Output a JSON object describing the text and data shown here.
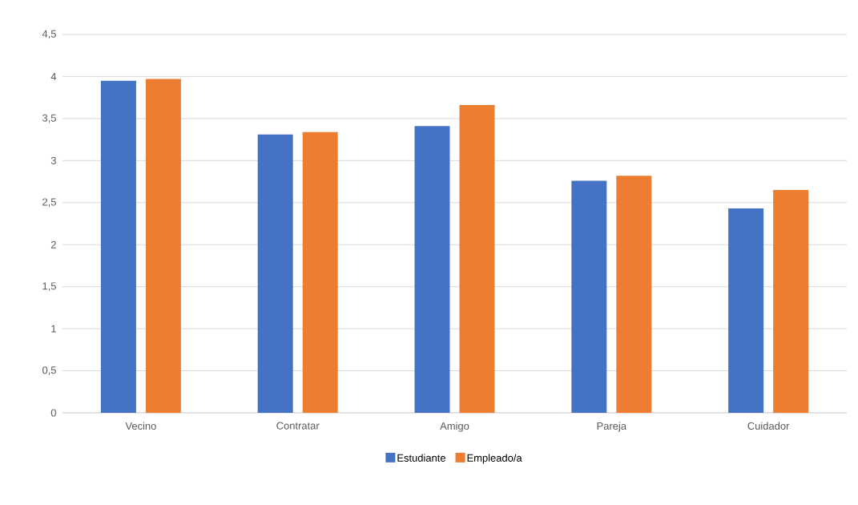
{
  "chart_data": {
    "type": "bar",
    "categories": [
      "Vecino",
      "Contratar",
      "Amigo",
      "Pareja",
      "Cuidador"
    ],
    "series": [
      {
        "name": "Estudiante",
        "color": "#4472c4",
        "values": [
          3.95,
          3.31,
          3.41,
          2.76,
          2.43
        ]
      },
      {
        "name": "Empleado/a",
        "color": "#ed7d31",
        "values": [
          3.97,
          3.34,
          3.66,
          2.82,
          2.65
        ]
      }
    ],
    "ylim": [
      0,
      4.5
    ],
    "yticks": [
      0,
      {
        "value": 0.5,
        "label": "0,5"
      },
      1,
      {
        "value": 1.5,
        "label": "1,5"
      },
      2,
      {
        "value": 2.5,
        "label": "2,5"
      },
      3,
      {
        "value": 3.5,
        "label": "3,5"
      },
      4,
      {
        "value": 4.5,
        "label": "4,5"
      }
    ],
    "grid": "y",
    "legend": "bottom"
  }
}
